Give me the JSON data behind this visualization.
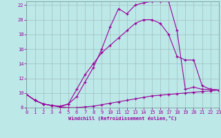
{
  "xlabel": "Windchill (Refroidissement éolien,°C)",
  "xlim": [
    0,
    23
  ],
  "ylim": [
    8,
    22.5
  ],
  "yticks": [
    8,
    10,
    12,
    14,
    16,
    18,
    20,
    22
  ],
  "xticks": [
    0,
    1,
    2,
    3,
    4,
    5,
    6,
    7,
    8,
    9,
    10,
    11,
    12,
    13,
    14,
    15,
    16,
    17,
    18,
    19,
    20,
    21,
    22,
    23
  ],
  "background_color": "#bde8e8",
  "line_color": "#990099",
  "grid_color": "#9fbebe",
  "line1_x": [
    0,
    1,
    2,
    3,
    4,
    5,
    6,
    7,
    8,
    9,
    10,
    11,
    12,
    13,
    14,
    15,
    16,
    17,
    18,
    19,
    20,
    21,
    22,
    23
  ],
  "line1_y": [
    9.8,
    9.0,
    8.5,
    8.3,
    8.1,
    8.0,
    8.0,
    8.1,
    8.2,
    8.4,
    8.6,
    8.8,
    9.0,
    9.2,
    9.4,
    9.6,
    9.7,
    9.8,
    9.9,
    10.0,
    10.1,
    10.2,
    10.3,
    10.4
  ],
  "line2_x": [
    0,
    1,
    2,
    3,
    4,
    5,
    6,
    7,
    8,
    9,
    10,
    11,
    12,
    13,
    14,
    15,
    16,
    17,
    18,
    19,
    20,
    21,
    22,
    23
  ],
  "line2_y": [
    9.8,
    9.0,
    8.5,
    8.3,
    8.1,
    8.5,
    10.5,
    12.5,
    14.0,
    15.5,
    16.5,
    17.5,
    18.5,
    19.5,
    20.0,
    20.0,
    19.5,
    18.0,
    15.0,
    14.5,
    14.5,
    11.0,
    10.5,
    10.4
  ],
  "line3_x": [
    0,
    1,
    2,
    3,
    4,
    5,
    6,
    7,
    8,
    9,
    10,
    11,
    12,
    13,
    14,
    15,
    16,
    17,
    18,
    19,
    20,
    21,
    22,
    23
  ],
  "line3_y": [
    9.8,
    9.0,
    8.5,
    8.3,
    8.2,
    8.5,
    9.5,
    11.5,
    13.5,
    16.0,
    19.0,
    21.5,
    20.8,
    22.0,
    22.3,
    22.5,
    22.5,
    22.5,
    18.5,
    10.5,
    10.8,
    10.5,
    10.5,
    10.4
  ]
}
